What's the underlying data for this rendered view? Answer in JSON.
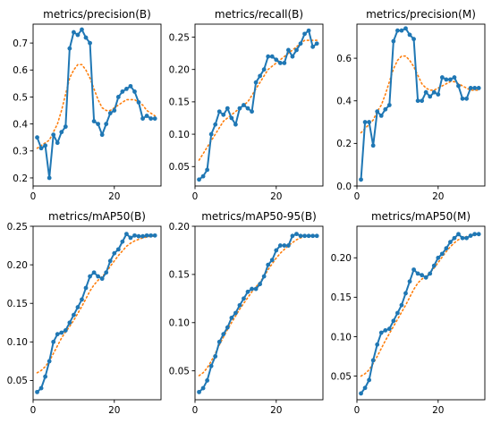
{
  "colors": {
    "line": "#1f77b4",
    "smooth": "#ff7f0e",
    "axes": "#000000"
  },
  "chart_data": [
    {
      "type": "line",
      "title": "metrics/precision(B)",
      "xlim": [
        0,
        31.5
      ],
      "ylim": [
        0.17,
        0.77
      ],
      "xticks": [
        0,
        20
      ],
      "yticks": [
        0.2,
        0.3,
        0.4,
        0.5,
        0.6,
        0.7
      ],
      "ytick_labels": [
        "0.2",
        "0.3",
        "0.4",
        "0.5",
        "0.6",
        "0.7"
      ],
      "x": [
        1,
        2,
        3,
        4,
        5,
        6,
        7,
        8,
        9,
        10,
        11,
        12,
        13,
        14,
        15,
        16,
        17,
        18,
        19,
        20,
        21,
        22,
        23,
        24,
        25,
        26,
        27,
        28,
        29,
        30
      ],
      "series": [
        {
          "values": [
            0.35,
            0.31,
            0.32,
            0.2,
            0.36,
            0.33,
            0.37,
            0.39,
            0.68,
            0.74,
            0.73,
            0.75,
            0.72,
            0.7,
            0.41,
            0.4,
            0.36,
            0.4,
            0.44,
            0.45,
            0.5,
            0.52,
            0.53,
            0.54,
            0.52,
            0.48,
            0.42,
            0.43,
            0.42,
            0.42
          ]
        },
        {
          "style": "dotted",
          "values": [
            0.31,
            0.32,
            0.33,
            0.34,
            0.37,
            0.4,
            0.45,
            0.51,
            0.57,
            0.6,
            0.62,
            0.62,
            0.6,
            0.57,
            0.53,
            0.49,
            0.46,
            0.45,
            0.45,
            0.46,
            0.47,
            0.48,
            0.49,
            0.49,
            0.49,
            0.48,
            0.47,
            0.45,
            0.44,
            0.43
          ]
        }
      ]
    },
    {
      "type": "line",
      "title": "metrics/recall(B)",
      "xlim": [
        0,
        31.5
      ],
      "ylim": [
        0.02,
        0.27
      ],
      "xticks": [
        0,
        20
      ],
      "yticks": [
        0.05,
        0.1,
        0.15,
        0.2,
        0.25
      ],
      "ytick_labels": [
        "0.05",
        "0.10",
        "0.15",
        "0.20",
        "0.25"
      ],
      "x": [
        1,
        2,
        3,
        4,
        5,
        6,
        7,
        8,
        9,
        10,
        11,
        12,
        13,
        14,
        15,
        16,
        17,
        18,
        19,
        20,
        21,
        22,
        23,
        24,
        25,
        26,
        27,
        28,
        29,
        30
      ],
      "series": [
        {
          "values": [
            0.03,
            0.035,
            0.045,
            0.1,
            0.115,
            0.135,
            0.13,
            0.14,
            0.125,
            0.115,
            0.14,
            0.145,
            0.14,
            0.135,
            0.18,
            0.19,
            0.2,
            0.22,
            0.22,
            0.215,
            0.21,
            0.21,
            0.23,
            0.22,
            0.23,
            0.24,
            0.255,
            0.26,
            0.235,
            0.24
          ]
        },
        {
          "style": "dotted",
          "values": [
            0.06,
            0.07,
            0.08,
            0.09,
            0.1,
            0.11,
            0.12,
            0.125,
            0.13,
            0.135,
            0.14,
            0.145,
            0.15,
            0.16,
            0.17,
            0.18,
            0.19,
            0.2,
            0.205,
            0.21,
            0.215,
            0.22,
            0.225,
            0.23,
            0.235,
            0.24,
            0.245,
            0.245,
            0.245,
            0.245
          ]
        }
      ]
    },
    {
      "type": "line",
      "title": "metrics/precision(M)",
      "xlim": [
        0,
        31.5
      ],
      "ylim": [
        0,
        0.76
      ],
      "xticks": [
        0,
        20
      ],
      "yticks": [
        0.0,
        0.2,
        0.4,
        0.6
      ],
      "ytick_labels": [
        "0.0",
        "0.2",
        "0.4",
        "0.6"
      ],
      "x": [
        1,
        2,
        3,
        4,
        5,
        6,
        7,
        8,
        9,
        10,
        11,
        12,
        13,
        14,
        15,
        16,
        17,
        18,
        19,
        20,
        21,
        22,
        23,
        24,
        25,
        26,
        27,
        28,
        29,
        30
      ],
      "series": [
        {
          "values": [
            0.03,
            0.3,
            0.3,
            0.19,
            0.35,
            0.33,
            0.36,
            0.38,
            0.68,
            0.73,
            0.73,
            0.74,
            0.71,
            0.69,
            0.4,
            0.4,
            0.44,
            0.42,
            0.44,
            0.43,
            0.51,
            0.5,
            0.5,
            0.51,
            0.47,
            0.41,
            0.41,
            0.46,
            0.46,
            0.46
          ]
        },
        {
          "style": "dotted",
          "values": [
            0.25,
            0.27,
            0.29,
            0.31,
            0.35,
            0.38,
            0.43,
            0.49,
            0.55,
            0.59,
            0.61,
            0.61,
            0.59,
            0.56,
            0.52,
            0.48,
            0.46,
            0.45,
            0.45,
            0.46,
            0.47,
            0.48,
            0.49,
            0.49,
            0.48,
            0.47,
            0.46,
            0.45,
            0.45,
            0.45
          ]
        }
      ]
    },
    {
      "type": "line",
      "title": "metrics/mAP50(B)",
      "xlim": [
        0,
        31.5
      ],
      "ylim": [
        0.025,
        0.25
      ],
      "xticks": [
        0,
        20
      ],
      "yticks": [
        0.05,
        0.1,
        0.15,
        0.2,
        0.25
      ],
      "ytick_labels": [
        "0.05",
        "0.10",
        "0.15",
        "0.20",
        "0.25"
      ],
      "x": [
        1,
        2,
        3,
        4,
        5,
        6,
        7,
        8,
        9,
        10,
        11,
        12,
        13,
        14,
        15,
        16,
        17,
        18,
        19,
        20,
        21,
        22,
        23,
        24,
        25,
        26,
        27,
        28,
        29,
        30
      ],
      "series": [
        {
          "values": [
            0.035,
            0.04,
            0.055,
            0.075,
            0.1,
            0.11,
            0.112,
            0.115,
            0.125,
            0.135,
            0.145,
            0.155,
            0.17,
            0.185,
            0.19,
            0.185,
            0.182,
            0.19,
            0.205,
            0.215,
            0.22,
            0.23,
            0.24,
            0.235,
            0.238,
            0.237,
            0.237,
            0.238,
            0.238,
            0.238
          ]
        },
        {
          "style": "dotted",
          "values": [
            0.06,
            0.063,
            0.068,
            0.075,
            0.085,
            0.095,
            0.105,
            0.113,
            0.12,
            0.128,
            0.137,
            0.146,
            0.156,
            0.166,
            0.174,
            0.18,
            0.185,
            0.19,
            0.198,
            0.205,
            0.212,
            0.218,
            0.224,
            0.228,
            0.231,
            0.233,
            0.235,
            0.236,
            0.237,
            0.237
          ]
        }
      ]
    },
    {
      "type": "line",
      "title": "metrics/mAP50-95(B)",
      "xlim": [
        0,
        31.5
      ],
      "ylim": [
        0.02,
        0.2
      ],
      "xticks": [
        0,
        20
      ],
      "yticks": [
        0.05,
        0.1,
        0.15,
        0.2
      ],
      "ytick_labels": [
        "0.05",
        "0.10",
        "0.15",
        "0.20"
      ],
      "x": [
        1,
        2,
        3,
        4,
        5,
        6,
        7,
        8,
        9,
        10,
        11,
        12,
        13,
        14,
        15,
        16,
        17,
        18,
        19,
        20,
        21,
        22,
        23,
        24,
        25,
        26,
        27,
        28,
        29,
        30
      ],
      "series": [
        {
          "values": [
            0.028,
            0.032,
            0.04,
            0.055,
            0.065,
            0.08,
            0.088,
            0.095,
            0.105,
            0.11,
            0.118,
            0.125,
            0.132,
            0.135,
            0.135,
            0.14,
            0.148,
            0.16,
            0.165,
            0.175,
            0.18,
            0.18,
            0.18,
            0.19,
            0.192,
            0.19,
            0.19,
            0.19,
            0.19,
            0.19
          ]
        },
        {
          "style": "dotted",
          "values": [
            0.045,
            0.048,
            0.053,
            0.06,
            0.068,
            0.077,
            0.085,
            0.093,
            0.1,
            0.107,
            0.114,
            0.12,
            0.126,
            0.132,
            0.137,
            0.142,
            0.148,
            0.155,
            0.161,
            0.167,
            0.172,
            0.176,
            0.18,
            0.183,
            0.186,
            0.188,
            0.189,
            0.19,
            0.19,
            0.19
          ]
        }
      ]
    },
    {
      "type": "line",
      "title": "metrics/mAP50(M)",
      "xlim": [
        0,
        31.5
      ],
      "ylim": [
        0.02,
        0.24
      ],
      "xticks": [
        0,
        20
      ],
      "yticks": [
        0.05,
        0.1,
        0.15,
        0.2
      ],
      "ytick_labels": [
        "0.05",
        "0.10",
        "0.15",
        "0.20"
      ],
      "x": [
        1,
        2,
        3,
        4,
        5,
        6,
        7,
        8,
        9,
        10,
        11,
        12,
        13,
        14,
        15,
        16,
        17,
        18,
        19,
        20,
        21,
        22,
        23,
        24,
        25,
        26,
        27,
        28,
        29,
        30
      ],
      "series": [
        {
          "values": [
            0.028,
            0.035,
            0.045,
            0.07,
            0.09,
            0.105,
            0.108,
            0.11,
            0.12,
            0.13,
            0.14,
            0.155,
            0.17,
            0.185,
            0.18,
            0.178,
            0.175,
            0.18,
            0.19,
            0.2,
            0.205,
            0.212,
            0.22,
            0.225,
            0.23,
            0.225,
            0.225,
            0.228,
            0.23,
            0.23
          ]
        },
        {
          "style": "dotted",
          "values": [
            0.05,
            0.053,
            0.058,
            0.066,
            0.075,
            0.085,
            0.095,
            0.104,
            0.113,
            0.122,
            0.131,
            0.14,
            0.15,
            0.16,
            0.168,
            0.173,
            0.177,
            0.181,
            0.187,
            0.194,
            0.201,
            0.208,
            0.214,
            0.219,
            0.223,
            0.225,
            0.227,
            0.228,
            0.229,
            0.23
          ]
        }
      ]
    }
  ]
}
